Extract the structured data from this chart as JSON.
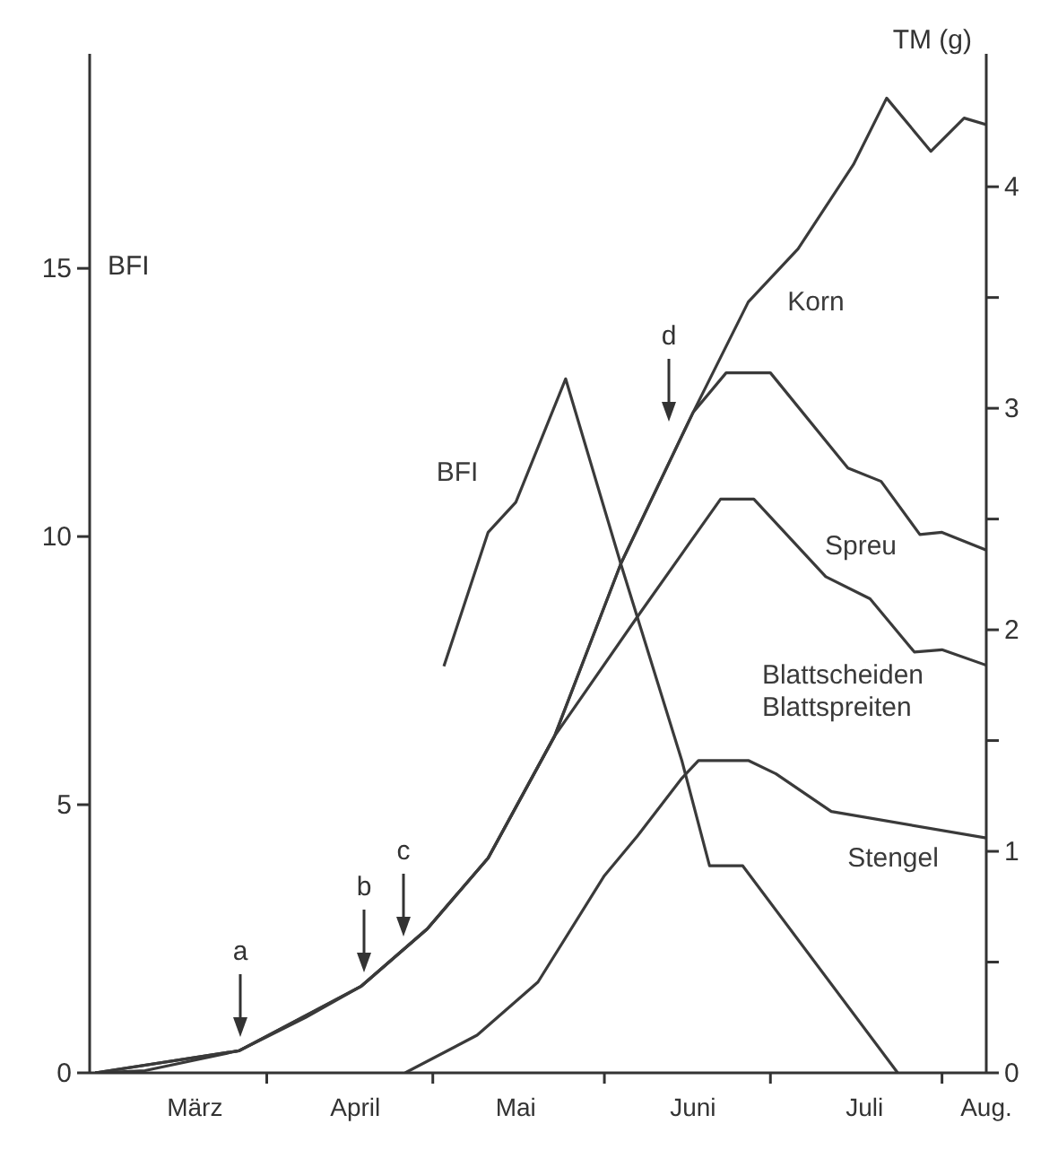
{
  "chart_data": {
    "type": "line",
    "ylabel": "BFI",
    "y2label": "TM (g)",
    "xlim": [
      "--02-28",
      "--08-09"
    ],
    "xticks": [
      {
        "value": "--03-19",
        "label": "März"
      },
      {
        "value": "--04-01",
        "label": null
      },
      {
        "value": "--04-17",
        "label": "April"
      },
      {
        "value": "--05-01",
        "label": null
      },
      {
        "value": "--05-16",
        "label": "Mai"
      },
      {
        "value": "--06-01",
        "label": null
      },
      {
        "value": "--06-17",
        "label": "Juni"
      },
      {
        "value": "--07-01",
        "label": null
      },
      {
        "value": "--07-18",
        "label": "Juli"
      },
      {
        "value": "--08-01",
        "label": null
      },
      {
        "value": "--08-09",
        "label": "Aug."
      }
    ],
    "ylim": [
      0,
      19
    ],
    "yticks": [
      0,
      5,
      10,
      15
    ],
    "y2lim": [
      0,
      4.6
    ],
    "y2ticks": [
      0,
      {
        "value": 0.5,
        "label": null
      },
      1,
      {
        "value": 1.5,
        "label": null
      },
      2,
      {
        "value": 2.5,
        "label": null
      },
      3,
      {
        "value": 3.5,
        "label": null
      },
      4
    ],
    "grid": false,
    "marker": "none",
    "line_style": "solid",
    "series": [
      {
        "name": "Korn",
        "color": "#3a3a3a",
        "axis": "y2",
        "x": [
          "--03-01",
          "--03-10",
          "--03-27",
          "--04-08",
          "--04-18",
          "--04-30",
          "--05-11",
          "--05-23",
          "--06-04",
          "--06-17",
          "--06-27",
          "--07-06",
          "--07-16",
          "--07-22",
          "--07-30",
          "--08-05",
          "--08-09"
        ],
        "values": [
          0,
          0.01,
          0.1,
          0.25,
          0.39,
          0.65,
          0.97,
          1.52,
          2.3,
          2.98,
          3.48,
          3.72,
          4.1,
          4.4,
          4.16,
          4.31,
          4.28
        ]
      },
      {
        "name": "Spreu",
        "color": "#3a3a3a",
        "axis": "y2",
        "x": [
          "--03-01",
          "--03-27",
          "--04-18",
          "--04-30",
          "--05-11",
          "--05-23",
          "--06-04",
          "--06-17",
          "--06-23",
          "--07-01",
          "--07-15",
          "--07-21",
          "--07-28",
          "--08-01",
          "--08-09"
        ],
        "values": [
          0,
          0.1,
          0.39,
          0.65,
          0.97,
          1.52,
          2.3,
          2.98,
          3.16,
          3.16,
          2.73,
          2.67,
          2.43,
          2.44,
          2.36
        ]
      },
      {
        "name": "Blattscheiden Blattspreiten",
        "color": "#3a3a3a",
        "axis": "y2",
        "x": [
          "--03-01",
          "--03-27",
          "--04-18",
          "--04-30",
          "--05-11",
          "--05-23",
          "--06-07",
          "--06-22",
          "--06-28",
          "--07-11",
          "--07-19",
          "--07-27",
          "--08-01",
          "--08-09"
        ],
        "values": [
          0,
          0.1,
          0.39,
          0.65,
          0.97,
          1.52,
          2.06,
          2.59,
          2.59,
          2.24,
          2.14,
          1.9,
          1.91,
          1.84
        ]
      },
      {
        "name": "Stengel",
        "color": "#3a3a3a",
        "axis": "y2",
        "x": [
          "--04-26",
          "--05-09",
          "--05-20",
          "--06-01",
          "--06-07",
          "--06-15",
          "--06-18",
          "--06-27",
          "--07-02",
          "--07-12",
          "--08-09"
        ],
        "values": [
          0,
          0.17,
          0.41,
          0.89,
          1.07,
          1.33,
          1.41,
          1.41,
          1.35,
          1.18,
          1.06
        ]
      },
      {
        "name": "BFI",
        "color": "#3a3a3a",
        "axis": "y",
        "x": [
          "--05-03",
          "--05-11",
          "--05-16",
          "--05-25",
          "--06-04",
          "--06-15",
          "--06-20",
          "--06-26",
          "--07-24"
        ],
        "values": [
          7.58,
          10.08,
          10.64,
          12.94,
          9.48,
          5.82,
          3.86,
          3.86,
          0
        ]
      }
    ],
    "annotations": [
      "a",
      "b",
      "c",
      "d"
    ]
  }
}
